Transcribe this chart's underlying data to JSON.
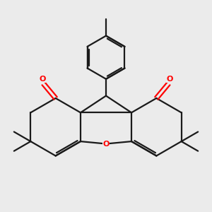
{
  "bg_color": "#ebebeb",
  "bond_color": "#1a1a1a",
  "oxygen_color": "#ff0000",
  "line_width": 1.6,
  "fig_size": [
    3.0,
    3.0
  ],
  "dpi": 100,
  "xlim": [
    -85,
    85
  ],
  "ylim": [
    -70,
    105
  ]
}
